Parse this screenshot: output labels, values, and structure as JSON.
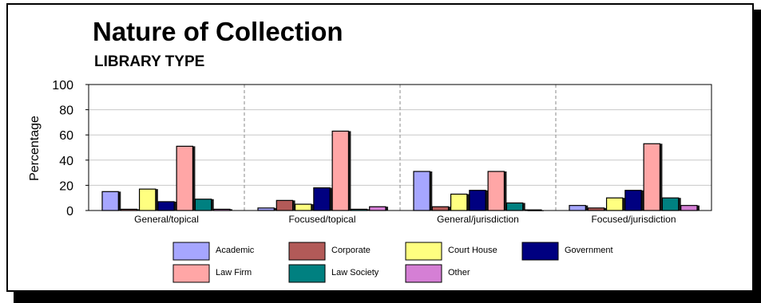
{
  "chart_data": {
    "type": "bar",
    "title": "Nature of Collection",
    "subtitle": "LIBRARY TYPE",
    "ylabel": "Percentage",
    "xlabel": "",
    "ylim": [
      0,
      100
    ],
    "yticks": [
      "0",
      "20",
      "40",
      "60",
      "80",
      "100"
    ],
    "categories": [
      "General/topical",
      "Focused/topical",
      "General/jurisdiction",
      "Focused/jurisdiction"
    ],
    "series": [
      {
        "name": "Academic",
        "color": "#a6a6ff",
        "values": [
          15,
          2,
          31,
          4
        ]
      },
      {
        "name": "Corporate",
        "color": "#b25a58",
        "values": [
          1,
          8,
          3,
          2
        ]
      },
      {
        "name": "Court House",
        "color": "#ffff80",
        "values": [
          17,
          5,
          13,
          10
        ]
      },
      {
        "name": "Government",
        "color": "#000080",
        "values": [
          7,
          18,
          16,
          16
        ]
      },
      {
        "name": "Law Firm",
        "color": "#ffa6a6",
        "values": [
          51,
          63,
          31,
          53
        ]
      },
      {
        "name": "Law Society",
        "color": "#008080",
        "values": [
          9,
          1,
          6,
          10
        ]
      },
      {
        "name": "Other",
        "color": "#d57fd5",
        "values": [
          1,
          3,
          0,
          4
        ]
      }
    ],
    "grid": true,
    "legend_position": "bottom"
  }
}
